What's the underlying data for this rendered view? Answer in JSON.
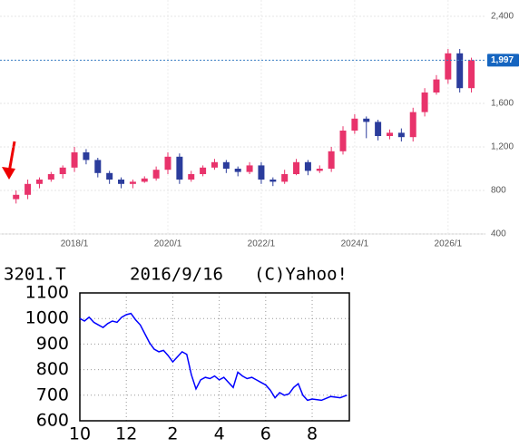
{
  "chart_data": [
    {
      "type": "candlestick",
      "x": [
        2016.75,
        2017,
        2017.25,
        2017.5,
        2017.75,
        2018,
        2018.25,
        2018.5,
        2018.75,
        2019,
        2019.25,
        2019.5,
        2019.75,
        2020,
        2020.25,
        2020.5,
        2020.75,
        2021,
        2021.25,
        2021.5,
        2021.75,
        2022,
        2022.25,
        2022.5,
        2022.75,
        2023,
        2023.25,
        2023.5,
        2023.75,
        2024,
        2024.25,
        2024.5,
        2024.75,
        2025,
        2025.25,
        2025.5,
        2025.75,
        2026,
        2026.25,
        2026.5
      ],
      "open": [
        720,
        760,
        860,
        900,
        950,
        1010,
        1150,
        1080,
        960,
        900,
        860,
        880,
        910,
        990,
        1110,
        900,
        950,
        1010,
        1060,
        1000,
        970,
        1030,
        900,
        880,
        950,
        1060,
        980,
        1000,
        1160,
        1350,
        1460,
        1430,
        1300,
        1330,
        1290,
        1520,
        1700,
        1820,
        2060,
        1740
      ],
      "high": [
        800,
        900,
        920,
        970,
        1030,
        1200,
        1180,
        1100,
        980,
        920,
        900,
        930,
        1020,
        1150,
        1140,
        980,
        1030,
        1090,
        1080,
        1020,
        1060,
        1060,
        920,
        990,
        1090,
        1080,
        1030,
        1200,
        1390,
        1500,
        1480,
        1450,
        1360,
        1370,
        1560,
        1740,
        1860,
        2100,
        2100,
        2020
      ],
      "low": [
        680,
        720,
        820,
        880,
        910,
        970,
        1040,
        920,
        860,
        820,
        820,
        870,
        890,
        950,
        860,
        880,
        930,
        990,
        960,
        930,
        950,
        860,
        840,
        860,
        940,
        940,
        960,
        970,
        1130,
        1320,
        1280,
        1260,
        1270,
        1250,
        1250,
        1480,
        1680,
        1780,
        1700,
        1700
      ],
      "close": [
        760,
        860,
        900,
        950,
        1010,
        1150,
        1080,
        960,
        900,
        860,
        880,
        910,
        990,
        1110,
        900,
        950,
        1010,
        1060,
        1000,
        970,
        1030,
        900,
        880,
        950,
        1060,
        980,
        1000,
        1160,
        1350,
        1460,
        1430,
        1300,
        1330,
        1290,
        1520,
        1700,
        1820,
        2060,
        1740,
        1997
      ],
      "up_color": "#e8336b",
      "down_color": "#2b3c9c",
      "xlim": [
        2016.6,
        2026.8
      ],
      "xticks": [
        {
          "value": 2018,
          "label": "2018/1"
        },
        {
          "value": 2020,
          "label": "2020/1"
        },
        {
          "value": 2022,
          "label": "2022/1"
        },
        {
          "value": 2024,
          "label": "2024/1"
        },
        {
          "value": 2026,
          "label": "2026/1"
        }
      ],
      "ylim": [
        400,
        2400
      ],
      "yticks": [
        {
          "value": 400,
          "label": "400"
        },
        {
          "value": 800,
          "label": "800"
        },
        {
          "value": 1200,
          "label": "1,200"
        },
        {
          "value": 1600,
          "label": "1,600"
        },
        {
          "value": 2400,
          "label": "2,400"
        }
      ],
      "last_price": {
        "value": 1997,
        "label": "1,997"
      },
      "grid": true
    },
    {
      "type": "line",
      "ticker": "3201.T",
      "date": "2016/9/16",
      "credit": "(C)Yahoo!",
      "color": "#0000ff",
      "x": [
        0,
        0.2,
        0.4,
        0.6,
        0.8,
        1,
        1.2,
        1.4,
        1.6,
        1.8,
        2,
        2.2,
        2.4,
        2.6,
        2.8,
        3,
        3.2,
        3.4,
        3.6,
        3.8,
        4,
        4.2,
        4.4,
        4.6,
        4.8,
        5,
        5.2,
        5.4,
        5.6,
        5.8,
        6,
        6.2,
        6.4,
        6.6,
        6.8,
        7,
        7.2,
        7.4,
        7.6,
        7.8,
        8,
        8.2,
        8.4,
        8.6,
        8.8,
        9,
        9.2,
        9.4,
        9.6,
        9.8,
        10,
        10.4,
        10.8,
        11.2,
        11.5
      ],
      "values": [
        1000,
        990,
        1005,
        985,
        975,
        965,
        980,
        990,
        985,
        1005,
        1015,
        1020,
        995,
        975,
        940,
        905,
        880,
        870,
        875,
        855,
        830,
        850,
        870,
        860,
        780,
        725,
        760,
        770,
        765,
        775,
        760,
        770,
        750,
        730,
        790,
        775,
        765,
        770,
        760,
        750,
        740,
        720,
        690,
        710,
        700,
        705,
        730,
        745,
        700,
        680,
        685,
        680,
        695,
        690,
        700
      ],
      "xlim": [
        0,
        11.6
      ],
      "xticks": [
        {
          "value": 0,
          "label": "10"
        },
        {
          "value": 2,
          "label": "12"
        },
        {
          "value": 4,
          "label": "2"
        },
        {
          "value": 6,
          "label": "4"
        },
        {
          "value": 8,
          "label": "6"
        },
        {
          "value": 10,
          "label": "8"
        }
      ],
      "ylim": [
        600,
        1100
      ],
      "yticks": [
        600,
        700,
        800,
        900,
        1000,
        1100
      ],
      "grid": true
    }
  ]
}
